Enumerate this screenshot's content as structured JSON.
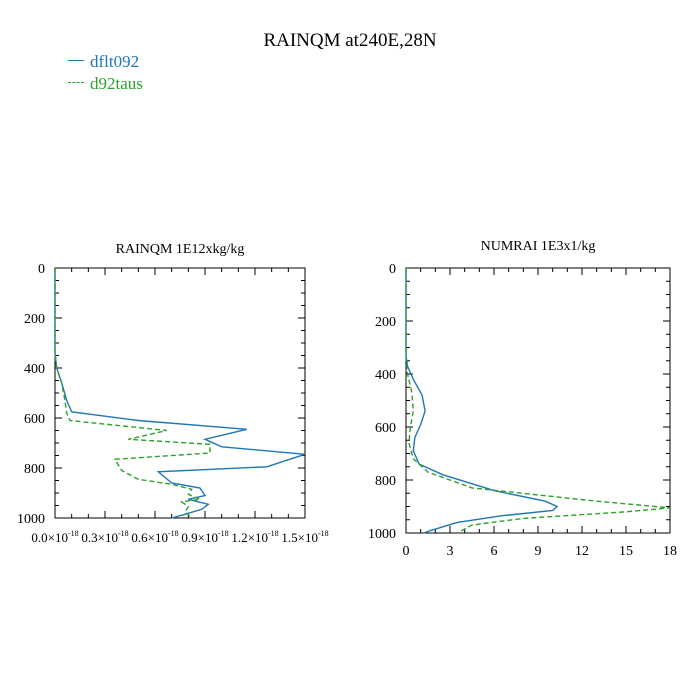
{
  "title": "RAINQM at240E,28N",
  "legend": [
    {
      "name": "dflt092",
      "color": "#1f77b4"
    },
    {
      "name": "d92taus",
      "color": "#2ca02c"
    }
  ],
  "chart_data": [
    {
      "type": "line",
      "title": "RAINQM  1E12xkg/kg",
      "xlim": [
        0,
        1.5e-18
      ],
      "ylim": [
        0,
        1000
      ],
      "y_inverted": true,
      "xticks": [
        {
          "v": 0,
          "label": "0.0×10",
          "exp": "-18"
        },
        {
          "v": 3e-19,
          "label": "0.3×10",
          "exp": "-18"
        },
        {
          "v": 6e-19,
          "label": "0.6×10",
          "exp": "-18"
        },
        {
          "v": 9e-19,
          "label": "0.9×10",
          "exp": "-18"
        },
        {
          "v": 1.2e-18,
          "label": "1.2×10",
          "exp": "-18"
        },
        {
          "v": 1.5e-18,
          "label": "1.5×10",
          "exp": "-18"
        }
      ],
      "yticks": [
        0,
        200,
        400,
        600,
        800,
        1000
      ],
      "series": [
        {
          "name": "dflt092",
          "color": "#1f77b4",
          "dash": false,
          "points": [
            [
              0,
              0
            ],
            [
              0,
              250
            ],
            [
              0,
              340
            ],
            [
              1e-20,
              400
            ],
            [
              4e-20,
              460
            ],
            [
              7e-20,
              530
            ],
            [
              1e-19,
              575
            ],
            [
              5e-19,
              610
            ],
            [
              1.15e-18,
              645
            ],
            [
              9e-19,
              685
            ],
            [
              1e-18,
              715
            ],
            [
              1.5e-18,
              745
            ],
            [
              1.27e-18,
              795
            ],
            [
              6.2e-19,
              815
            ],
            [
              7e-19,
              860
            ],
            [
              8.7e-19,
              880
            ],
            [
              9e-19,
              910
            ],
            [
              8e-19,
              925
            ],
            [
              9.2e-19,
              945
            ],
            [
              8.8e-19,
              965
            ],
            [
              7.8e-19,
              985
            ],
            [
              7e-19,
              1000
            ]
          ]
        },
        {
          "name": "d92taus",
          "color": "#2ca02c",
          "dash": true,
          "points": [
            [
              0,
              0
            ],
            [
              0,
              250
            ],
            [
              0,
              340
            ],
            [
              1e-20,
              400
            ],
            [
              4e-20,
              460
            ],
            [
              6e-20,
              530
            ],
            [
              7e-20,
              580
            ],
            [
              9e-20,
              610
            ],
            [
              6.7e-19,
              650
            ],
            [
              4.4e-19,
              685
            ],
            [
              9.3e-19,
              705
            ],
            [
              9.3e-19,
              740
            ],
            [
              3.6e-19,
              765
            ],
            [
              4e-19,
              810
            ],
            [
              5e-19,
              845
            ],
            [
              7e-19,
              865
            ],
            [
              8.2e-19,
              885
            ],
            [
              8e-19,
              905
            ],
            [
              8.7e-19,
              925
            ],
            [
              7.6e-19,
              935
            ],
            [
              8e-19,
              955
            ],
            [
              7.8e-19,
              975
            ],
            [
              8.2e-19,
              1000
            ]
          ]
        }
      ]
    },
    {
      "type": "line",
      "title": "NUMRAI  1E3x1/kg",
      "xlim": [
        0,
        18
      ],
      "ylim": [
        0,
        1000
      ],
      "y_inverted": true,
      "xticks": [
        {
          "v": 0,
          "label": "0"
        },
        {
          "v": 3,
          "label": "3"
        },
        {
          "v": 6,
          "label": "6"
        },
        {
          "v": 9,
          "label": "9"
        },
        {
          "v": 12,
          "label": "12"
        },
        {
          "v": 15,
          "label": "15"
        },
        {
          "v": 18,
          "label": "18"
        }
      ],
      "yticks": [
        0,
        200,
        400,
        600,
        800,
        1000
      ],
      "series": [
        {
          "name": "dflt092",
          "color": "#1f77b4",
          "dash": false,
          "points": [
            [
              0,
              0
            ],
            [
              0,
              250
            ],
            [
              0,
              330
            ],
            [
              0.1,
              370
            ],
            [
              0.5,
              420
            ],
            [
              1.1,
              480
            ],
            [
              1.3,
              540
            ],
            [
              1.0,
              590
            ],
            [
              0.6,
              640
            ],
            [
              0.5,
              690
            ],
            [
              0.9,
              740
            ],
            [
              2.5,
              780
            ],
            [
              6.0,
              840
            ],
            [
              9.5,
              880
            ],
            [
              10.3,
              900
            ],
            [
              10.0,
              915
            ],
            [
              6.5,
              935
            ],
            [
              3.5,
              960
            ],
            [
              1.7,
              990
            ],
            [
              1.2,
              1000
            ]
          ]
        },
        {
          "name": "d92taus",
          "color": "#2ca02c",
          "dash": true,
          "points": [
            [
              0,
              0
            ],
            [
              0,
              250
            ],
            [
              0,
              340
            ],
            [
              0.1,
              400
            ],
            [
              0.4,
              470
            ],
            [
              0.5,
              540
            ],
            [
              0.3,
              600
            ],
            [
              0.2,
              660
            ],
            [
              0.5,
              720
            ],
            [
              1.5,
              770
            ],
            [
              4.5,
              830
            ],
            [
              13,
              880
            ],
            [
              18,
              905
            ],
            [
              15,
              920
            ],
            [
              8,
              945
            ],
            [
              4.5,
              970
            ],
            [
              3.5,
              1000
            ]
          ]
        }
      ]
    }
  ]
}
